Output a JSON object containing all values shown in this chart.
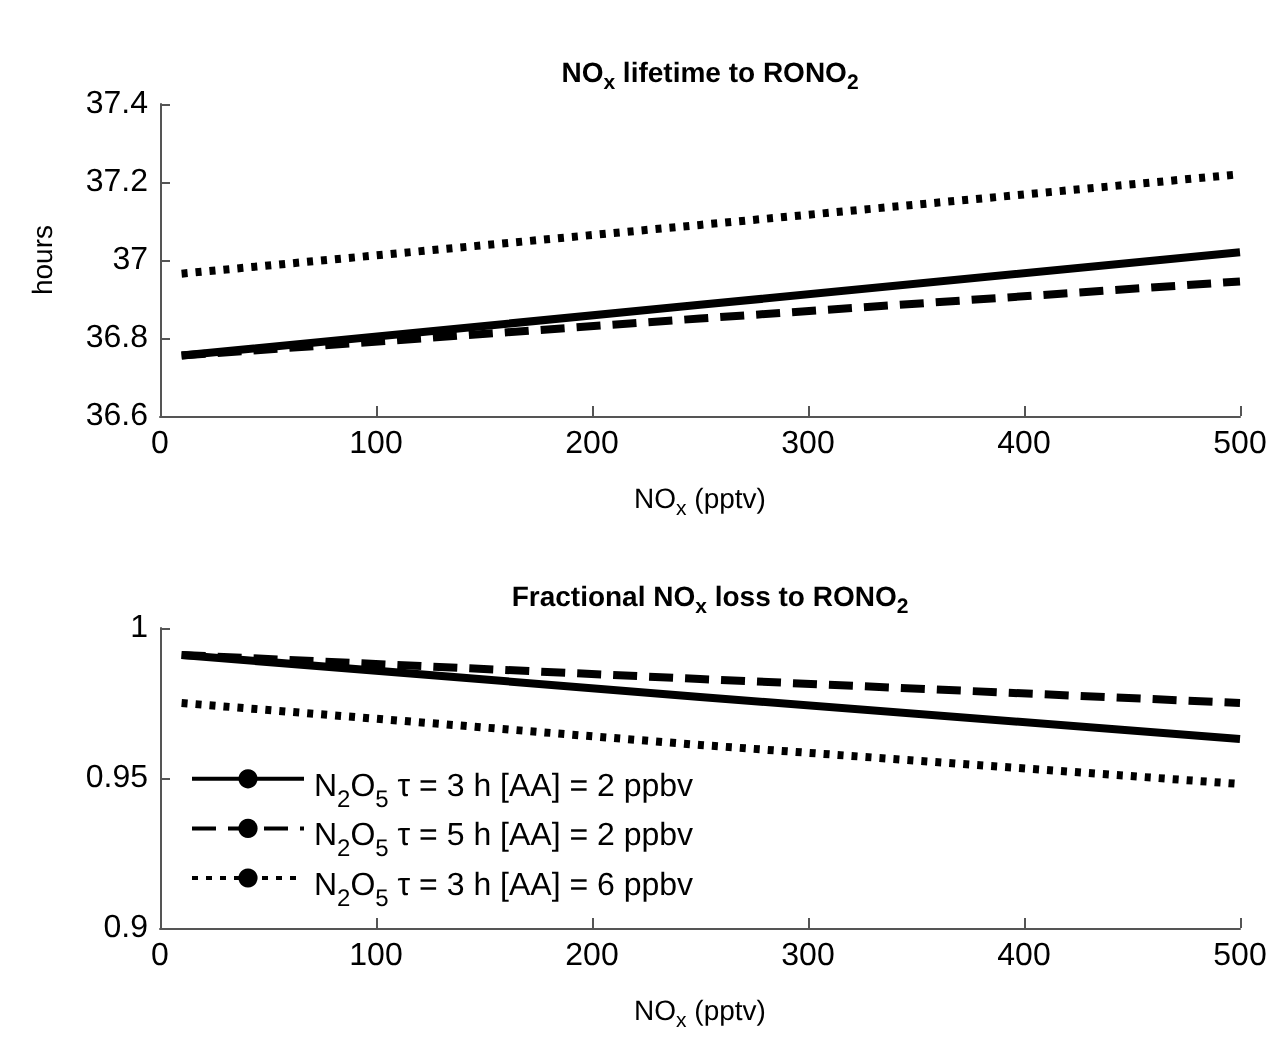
{
  "chart_data": [
    {
      "type": "line",
      "title": "NO$_{x}$ lifetime to RONO$_{2}$",
      "xlabel": "NO$_{x}$ (pptv)",
      "ylabel": "hours",
      "xlim": [
        0,
        500
      ],
      "xticks": [
        0,
        100,
        200,
        300,
        400,
        500
      ],
      "ylim": [
        36.6,
        37.4
      ],
      "yticks": [
        36.6,
        36.8,
        37,
        37.2,
        37.4
      ],
      "grid": false,
      "legend": false,
      "marker": "none",
      "series": [
        {
          "color": "#000000",
          "line_style": "solid",
          "x": [
            10,
            250,
            500
          ],
          "values": [
            36.755,
            36.885,
            37.02
          ]
        },
        {
          "color": "#000000",
          "line_style": "dashed",
          "x": [
            10,
            250,
            500
          ],
          "values": [
            36.755,
            36.85,
            36.945
          ]
        },
        {
          "color": "#000000",
          "line_style": "dotted",
          "x": [
            10,
            250,
            500
          ],
          "values": [
            36.965,
            37.09,
            37.22
          ]
        }
      ]
    },
    {
      "type": "line",
      "title": "Fractional NO$_{x}$ loss to RONO$_{2}$",
      "xlabel": "NO$_{x}$ (pptv)",
      "xlim": [
        0,
        500
      ],
      "xticks": [
        0,
        100,
        200,
        300,
        400,
        500
      ],
      "ylim": [
        0.9,
        1
      ],
      "yticks": [
        0.9,
        0.95,
        1
      ],
      "grid": false,
      "legend": "bottom left",
      "marker": "none",
      "series": [
        {
          "name": "N$_{2}$O$_{5}$ τ = 3 h [AA] = 2 ppbv",
          "color": "#000000",
          "line_style": "solid",
          "x": [
            10,
            250,
            500
          ],
          "values": [
            0.991,
            0.977,
            0.963
          ]
        },
        {
          "name": "N$_{2}$O$_{5}$ τ = 5 h [AA] = 2 ppbv",
          "color": "#000000",
          "line_style": "dashed",
          "x": [
            10,
            250,
            500
          ],
          "values": [
            0.991,
            0.983,
            0.975
          ]
        },
        {
          "name": "N$_{2}$O$_{5}$ τ = 3 h [AA] = 6 ppbv",
          "color": "#000000",
          "line_style": "dotted",
          "x": [
            10,
            250,
            500
          ],
          "values": [
            0.975,
            0.961,
            0.948
          ]
        }
      ]
    }
  ]
}
